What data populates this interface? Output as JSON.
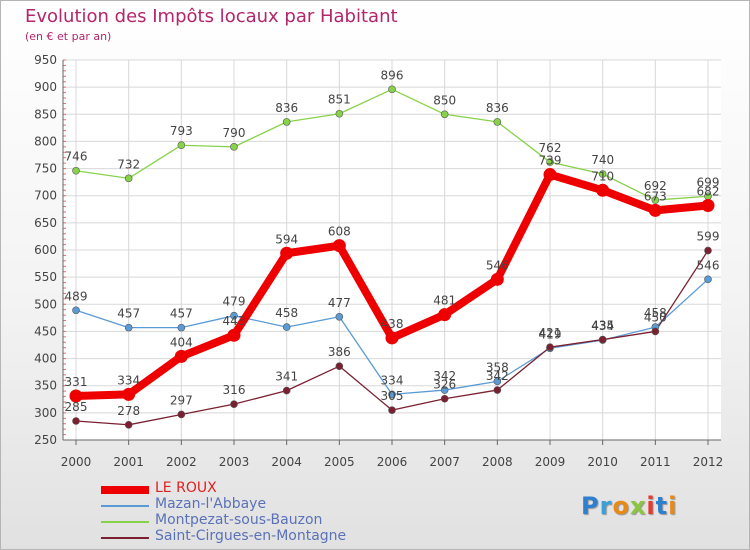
{
  "chart_data": {
    "type": "line",
    "title": "Evolution des Impôts locaux par Habitant",
    "subtitle": "(en € et par an)",
    "xlabel": "",
    "ylabel": "",
    "ylim": [
      250,
      950
    ],
    "yticks": [
      250,
      300,
      350,
      400,
      450,
      500,
      550,
      600,
      650,
      700,
      750,
      800,
      850,
      900,
      950
    ],
    "categories": [
      "2000",
      "2001",
      "2002",
      "2003",
      "2004",
      "2005",
      "2006",
      "2007",
      "2008",
      "2009",
      "2010",
      "2011",
      "2012"
    ],
    "grid": true,
    "legend_position": "bottom-left",
    "series": [
      {
        "name": "LE ROUX",
        "color": "#ee0000",
        "values": [
          331,
          334,
          404,
          443,
          594,
          608,
          438,
          481,
          546,
          739,
          710,
          673,
          682
        ]
      },
      {
        "name": "Mazan-l'Abbaye",
        "color": "#5b9bd5",
        "values": [
          489,
          457,
          457,
          479,
          458,
          477,
          334,
          342,
          358,
          419,
          434,
          458,
          546
        ]
      },
      {
        "name": "Montpezat-sous-Bauzon",
        "color": "#88d24a",
        "values": [
          746,
          732,
          793,
          790,
          836,
          851,
          896,
          850,
          836,
          762,
          740,
          692,
          699
        ]
      },
      {
        "name": "Saint-Cirgues-en-Montagne",
        "color": "#7a2030",
        "values": [
          285,
          278,
          297,
          316,
          341,
          386,
          305,
          326,
          342,
          421,
          435,
          450,
          599
        ]
      }
    ]
  },
  "logo": {
    "letters": [
      "P",
      "r",
      "o",
      "x",
      "i",
      "t",
      "i"
    ],
    "colors": [
      "#2f7fd0",
      "#3aa0d8",
      "#e98a15",
      "#8cc63f",
      "#e33b2f",
      "#2f7fd0",
      "#e98a15"
    ]
  }
}
